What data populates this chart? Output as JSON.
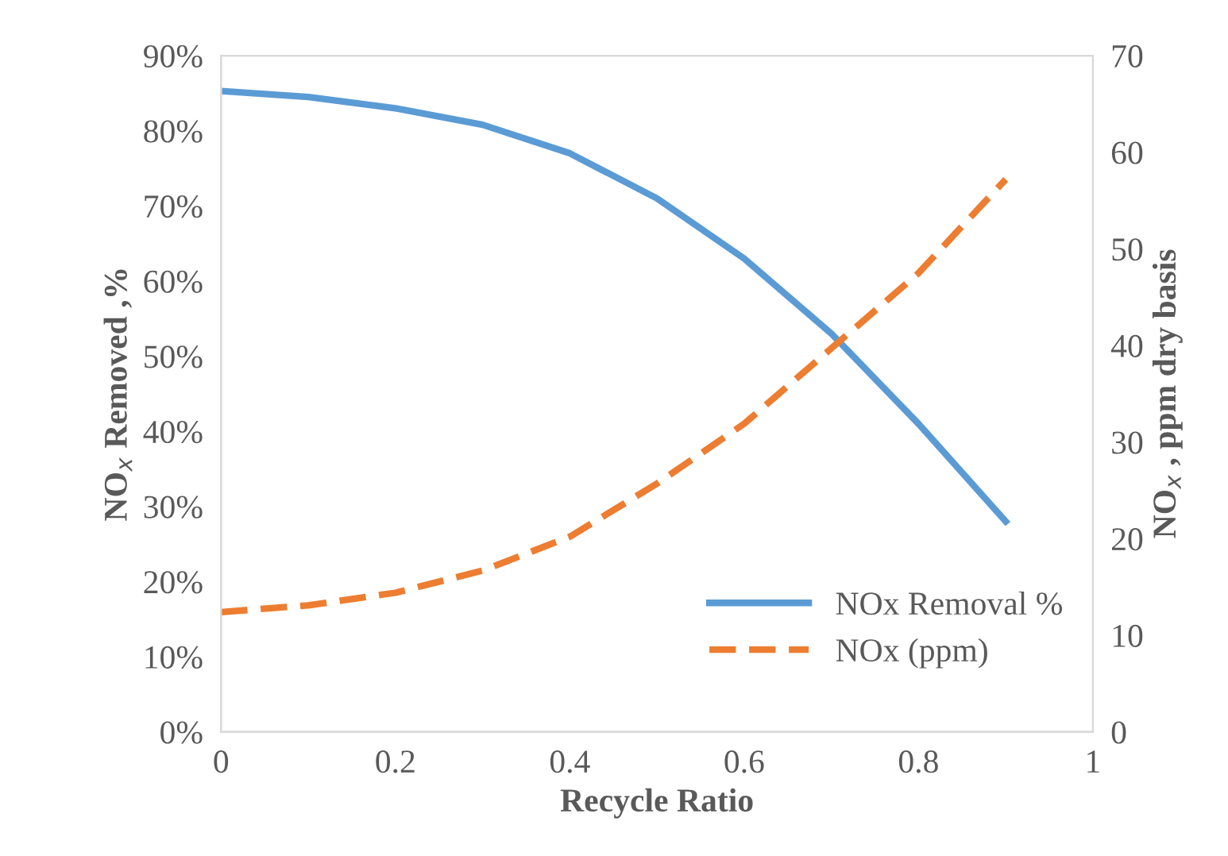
{
  "chart_data": {
    "type": "line",
    "xlabel": "Recycle Ratio",
    "ylabel": "NO$_{x}$ Removed ,%",
    "y2label": "NO$_{x}$ , ppm dry basis",
    "x": [
      0,
      0.1,
      0.2,
      0.3,
      0.4,
      0.5,
      0.6,
      0.7,
      0.8,
      0.9
    ],
    "series": [
      {
        "name": "NOx Removal %",
        "color": "#5b9bd5",
        "line_style": "solid",
        "values": [
          85.3,
          84.5,
          83,
          80.8,
          77,
          71,
          63,
          53,
          41,
          28
        ]
      },
      {
        "name": "NOx (ppm)",
        "color": "#ed7d31",
        "line_style": "dashed",
        "axis": "y2",
        "values": [
          12.4,
          13.1,
          14.4,
          16.7,
          20.2,
          25.7,
          31.9,
          39.7,
          47.5,
          57.2
        ]
      }
    ],
    "xlim": [
      0,
      1
    ],
    "xticks": [
      0,
      0.2,
      0.4,
      0.6,
      0.8,
      1
    ],
    "ylim": [
      0,
      90
    ],
    "yticks": [
      {
        "value": 0,
        "label": "0%"
      },
      {
        "value": 10,
        "label": "10%"
      },
      {
        "value": 20,
        "label": "20%"
      },
      {
        "value": 30,
        "label": "30%"
      },
      {
        "value": 40,
        "label": "40%"
      },
      {
        "value": 50,
        "label": "50%"
      },
      {
        "value": 60,
        "label": "60%"
      },
      {
        "value": 70,
        "label": "70%"
      },
      {
        "value": 80,
        "label": "80%"
      },
      {
        "value": 90,
        "label": "90%"
      }
    ],
    "y2lim": [
      0,
      70
    ],
    "y2ticks": [
      0,
      10,
      20,
      30,
      40,
      50,
      60,
      70
    ],
    "grid": false,
    "legend": "bottom right",
    "marker": "none"
  }
}
